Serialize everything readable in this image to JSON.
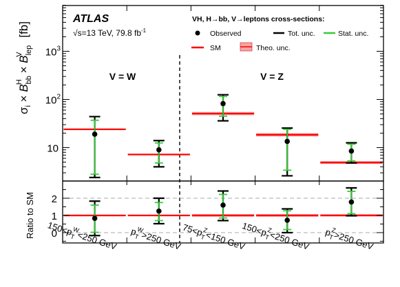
{
  "chart_data": {
    "type": "scatter",
    "experiment": "ATLAS",
    "energy_label": "√s=13 TeV, 79.8 fb",
    "energy_sup": "-1",
    "unit": "[fb]",
    "legend_title": "VH, H→bb, V→leptons cross-sections:",
    "legend_placement": "top-right",
    "legend": {
      "observed": "Observed",
      "tot": "Tot. unc.",
      "stat": "Stat. unc.",
      "sm": "SM",
      "theo": "Theo. unc."
    },
    "ylabel_top": "σ × B × B",
    "ylabel_bottom": "Ratio to SM",
    "group_labels": [
      "V = W",
      "V = Z"
    ],
    "yscale_top": "log",
    "ylim_top": [
      2.8,
      9000
    ],
    "yticks_top": [
      "10",
      "10²",
      "10³"
    ],
    "ylim_bottom": [
      -0.5,
      3.0
    ],
    "yticks_bottom": [
      "0",
      "1",
      "2"
    ],
    "bins": [
      {
        "label": "150<p_T^W<250 GeV",
        "obs": 19.0,
        "tot": [
          2.4,
          44.0
        ],
        "stat": [
          2.8,
          37.0
        ],
        "sm": 24.0,
        "theo": [
          23.3,
          24.7
        ],
        "ratio": 0.83,
        "ratio_tot": [
          -0.17,
          1.83
        ],
        "ratio_stat": [
          0.02,
          1.6
        ]
      },
      {
        "label": "p_T^W>250 GeV",
        "obs": 9.0,
        "tot": [
          4.0,
          14.0
        ],
        "stat": [
          4.8,
          12.5
        ],
        "sm": 7.2,
        "theo": [
          7.0,
          7.45
        ],
        "ratio": 1.25,
        "ratio_tot": [
          0.52,
          2.0
        ],
        "ratio_stat": [
          0.7,
          1.75
        ]
      },
      {
        "label": "75<p_T^Z<150 GeV",
        "obs": 82.0,
        "tot": [
          36.0,
          125.0
        ],
        "stat": [
          45.0,
          115.0
        ],
        "sm": 51.0,
        "theo": [
          47.0,
          55.0
        ],
        "ratio": 1.6,
        "ratio_tot": [
          0.7,
          2.42
        ],
        "ratio_stat": [
          0.85,
          2.22
        ]
      },
      {
        "label": "150<p_T^Z<250 GeV",
        "obs": 13.5,
        "tot": [
          2.6,
          25.5
        ],
        "stat": [
          3.4,
          24.0
        ],
        "sm": 18.5,
        "theo": [
          17.0,
          20.0
        ],
        "ratio": 0.72,
        "ratio_tot": [
          0.0,
          1.38
        ],
        "ratio_stat": [
          0.18,
          1.27
        ]
      },
      {
        "label": "p_T^Z>250 GeV",
        "obs": 8.5,
        "tot": [
          4.8,
          12.6
        ],
        "stat": [
          5.3,
          11.8
        ],
        "sm": 4.9,
        "theo": [
          4.6,
          5.25
        ],
        "ratio": 1.78,
        "ratio_tot": [
          0.98,
          2.6
        ],
        "ratio_stat": [
          1.1,
          2.4
        ]
      }
    ],
    "xlabels": [
      {
        "pre": "150<p",
        "sub": "T",
        "sup": "W",
        "post": "<250 GeV"
      },
      {
        "pre": "p",
        "sub": "T",
        "sup": "W",
        "post": ">250 GeV"
      },
      {
        "pre": "75<p",
        "sub": "T",
        "sup": "Z",
        "post": "<150 GeV"
      },
      {
        "pre": "150<p",
        "sub": "T",
        "sup": "Z",
        "post": "<250 GeV"
      },
      {
        "pre": "p",
        "sub": "T",
        "sup": "Z",
        "post": ">250 GeV"
      }
    ],
    "colors": {
      "sm": "#ff0000",
      "stat": "#33cc33",
      "theo": "#f4a6a6",
      "obs": "#000000"
    }
  }
}
